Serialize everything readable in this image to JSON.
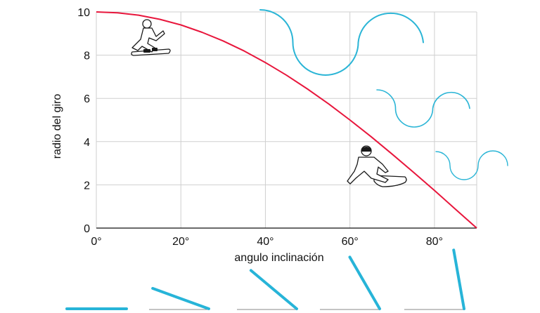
{
  "chart_data": {
    "type": "line",
    "xlabel": "angulo inclinación",
    "ylabel": "radio del giro",
    "xlim": [
      0,
      90
    ],
    "ylim": [
      0,
      10
    ],
    "x_ticks": [
      0,
      20,
      40,
      60,
      80
    ],
    "x_tick_labels": [
      "0°",
      "20°",
      "40°",
      "60°",
      "80°"
    ],
    "y_ticks": [
      0,
      2,
      4,
      6,
      8,
      10
    ],
    "y_tick_labels": [
      "0",
      "2",
      "4",
      "6",
      "8",
      "10"
    ],
    "grid": true,
    "series": [
      {
        "color": "#e8163c",
        "x": [
          0,
          5,
          10,
          15,
          20,
          25,
          30,
          35,
          40,
          45,
          50,
          55,
          60,
          65,
          70,
          75,
          80,
          85,
          90
        ],
        "values": [
          10,
          9.96,
          9.85,
          9.66,
          9.4,
          9.06,
          8.66,
          8.19,
          7.66,
          7.07,
          6.43,
          5.74,
          5.0,
          4.23,
          3.42,
          2.59,
          1.74,
          0.87,
          0
        ]
      }
    ],
    "lean_angles_deg": [
      0,
      20,
      40,
      60,
      80
    ],
    "lean_color": "#27b4d8",
    "wave_color": "#2bb5d6",
    "icons": [
      "snowboarder-carving-icon",
      "snowboarder-deep-lean-icon"
    ]
  }
}
